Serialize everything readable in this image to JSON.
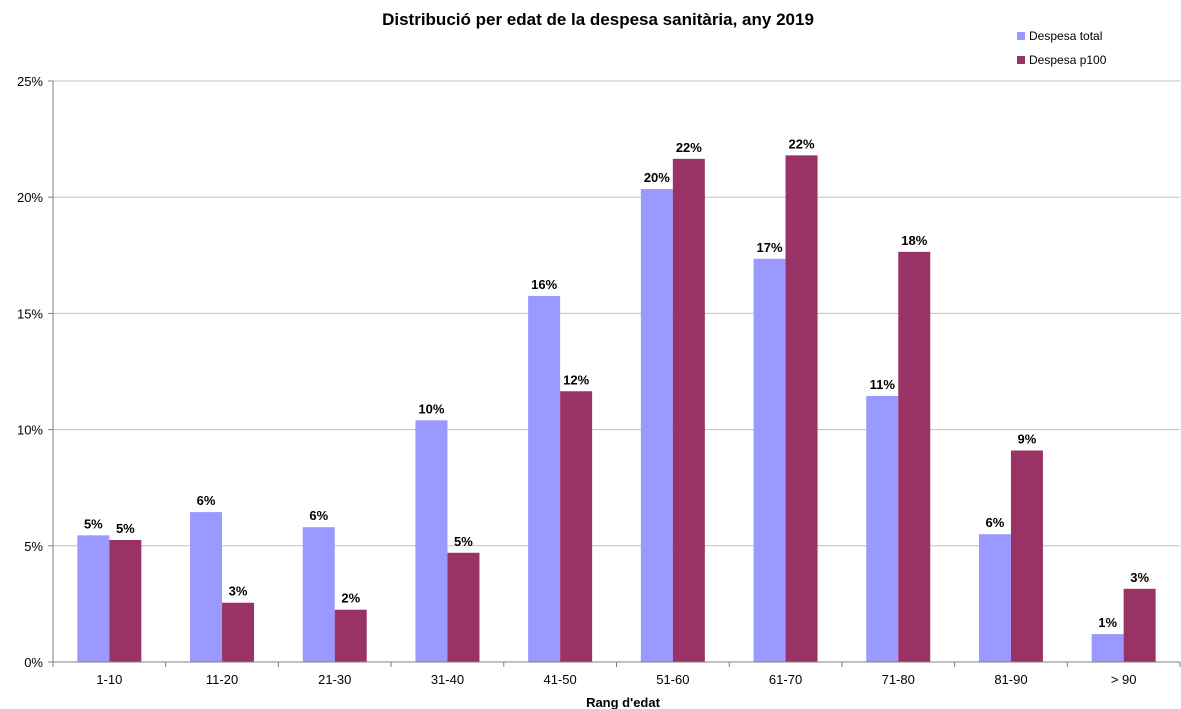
{
  "chart_data": {
    "type": "bar",
    "title": "Distribució per edat de la despesa sanitària, any 2019",
    "xlabel": "Rang d'edat",
    "ylabel": "",
    "categories": [
      "1-10",
      "11-20",
      "21-30",
      "31-40",
      "41-50",
      "51-60",
      "61-70",
      "71-80",
      "81-90",
      "> 90"
    ],
    "series": [
      {
        "name": "Despesa total",
        "color": "#9999ff",
        "values": [
          5.45,
          6.45,
          5.8,
          10.4,
          15.75,
          20.35,
          17.35,
          11.45,
          5.5,
          1.2
        ],
        "labels": [
          "5%",
          "6%",
          "6%",
          "10%",
          "16%",
          "20%",
          "17%",
          "11%",
          "6%",
          "1%"
        ]
      },
      {
        "name": "Despesa p100",
        "color": "#993366",
        "values": [
          5.25,
          2.55,
          2.25,
          4.7,
          11.65,
          21.65,
          21.8,
          17.65,
          9.1,
          3.15
        ],
        "labels": [
          "5%",
          "3%",
          "2%",
          "5%",
          "12%",
          "22%",
          "22%",
          "18%",
          "9%",
          "3%"
        ]
      }
    ],
    "ylim": [
      0,
      25
    ],
    "yticks": [
      0,
      5,
      10,
      15,
      20,
      25
    ],
    "ytick_labels": [
      "0%",
      "5%",
      "10%",
      "15%",
      "20%",
      "25%"
    ],
    "grid": true,
    "legend_position": "top-right"
  }
}
